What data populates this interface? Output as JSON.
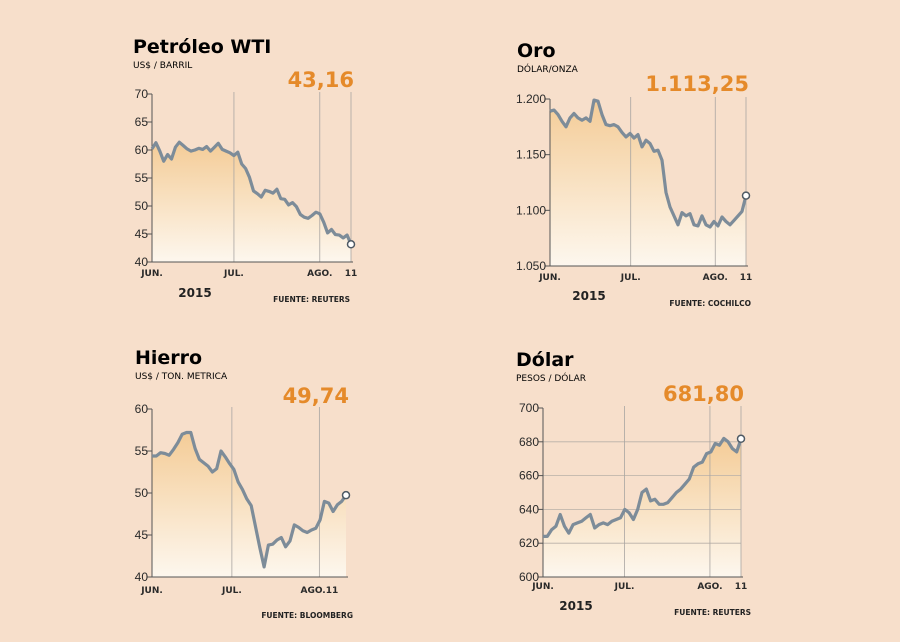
{
  "colors": {
    "background": "#f7dfcb",
    "line": "#7d8c99",
    "highlight": "#e58a2a",
    "fill_top": "#f4cc97",
    "fill_bottom": "#fdf7ee"
  },
  "chart_data": [
    {
      "type": "line",
      "title": "Petróleo WTI",
      "subtitle": "US$ / BARRIL",
      "last_value_label": "43,16",
      "year_label": "2015",
      "source": "FUENTE: REUTERS",
      "ylim": [
        40,
        70
      ],
      "y_ticks": [
        "70",
        "65",
        "60",
        "55",
        "50",
        "45",
        "40"
      ],
      "x_ticks": [
        "JUN.",
        "JUL.",
        "AGO.",
        "11"
      ],
      "x_tick_positions": [
        0,
        21,
        43,
        51
      ],
      "grid": "vertical",
      "values": [
        60.2,
        61.3,
        59.8,
        58.0,
        59.2,
        58.4,
        60.5,
        61.4,
        60.8,
        60.2,
        59.8,
        60.0,
        60.3,
        60.1,
        60.6,
        59.8,
        60.5,
        61.2,
        60.1,
        59.8,
        59.5,
        59.0,
        59.6,
        57.5,
        56.7,
        55.1,
        52.7,
        52.2,
        51.6,
        52.8,
        52.6,
        52.3,
        53.0,
        51.3,
        51.2,
        50.2,
        50.6,
        49.9,
        48.5,
        48.0,
        47.8,
        48.3,
        48.9,
        48.6,
        47.1,
        45.2,
        45.8,
        44.9,
        44.8,
        44.3,
        44.8,
        43.16
      ]
    },
    {
      "type": "line",
      "title": "Oro",
      "subtitle": "DÓLAR/ONZA",
      "last_value_label": "1.113,25",
      "year_label": "2015",
      "source": "FUENTE: COCHILCO",
      "ylim": [
        1050,
        1200
      ],
      "y_ticks": [
        "1.200",
        "1.150",
        "1.100",
        "1.050"
      ],
      "x_ticks": [
        "JUN.",
        "JUL.",
        "AGO.",
        "11"
      ],
      "x_tick_positions": [
        0,
        21,
        43,
        51
      ],
      "grid": "vertical",
      "values": [
        1189,
        1190,
        1186,
        1180,
        1175,
        1183,
        1187,
        1183,
        1181,
        1183,
        1180,
        1199,
        1198,
        1186,
        1177,
        1176,
        1177,
        1175,
        1170,
        1166,
        1169,
        1165,
        1168,
        1157,
        1163,
        1160,
        1153,
        1154,
        1145,
        1116,
        1103,
        1095,
        1087,
        1098,
        1095,
        1097,
        1087,
        1086,
        1095,
        1087,
        1085,
        1090,
        1086,
        1094,
        1090,
        1087,
        1091,
        1095,
        1099,
        1113.25
      ]
    },
    {
      "type": "line",
      "title": "Hierro",
      "subtitle": "US$ / TON. METRICA",
      "last_value_label": "49,74",
      "year_label": "",
      "source": "FUENTE: BLOOMBERG",
      "ylim": [
        40,
        60
      ],
      "y_ticks": [
        "60",
        "55",
        "50",
        "45",
        "40"
      ],
      "x_ticks": [
        "JUN.",
        "JUL.",
        "AGO.11"
      ],
      "x_tick_positions": [
        0,
        21,
        44
      ],
      "grid": "vertical",
      "values": [
        54.4,
        54.4,
        54.8,
        54.7,
        54.5,
        55.2,
        56.0,
        57.0,
        57.2,
        57.2,
        55.3,
        54.0,
        53.6,
        53.2,
        52.5,
        52.9,
        55.0,
        54.3,
        53.5,
        52.8,
        51.3,
        50.4,
        49.3,
        48.5,
        46.0,
        43.5,
        41.2,
        43.8,
        43.9,
        44.4,
        44.7,
        43.6,
        44.3,
        46.2,
        45.9,
        45.5,
        45.3,
        45.6,
        45.8,
        46.8,
        49.0,
        48.8,
        47.8,
        48.6,
        49.0,
        49.74
      ]
    },
    {
      "type": "line",
      "title": "Dólar",
      "subtitle": "PESOS / DÓLAR",
      "last_value_label": "681,80",
      "year_label": "2015",
      "source": "FUENTE: REUTERS",
      "ylim": [
        600,
        700
      ],
      "y_ticks": [
        "700",
        "680",
        "660",
        "640",
        "620",
        "600"
      ],
      "x_ticks": [
        "JUN.",
        "JUL.",
        "AGO.",
        "11"
      ],
      "x_tick_positions": [
        0,
        21,
        43,
        51
      ],
      "grid": "both",
      "values": [
        624,
        624,
        628,
        630,
        637,
        630,
        626,
        631,
        632,
        633,
        635,
        637,
        629,
        631,
        632,
        631,
        633,
        634,
        635,
        640,
        638,
        634,
        640,
        650,
        652,
        645,
        646,
        643,
        643,
        644,
        647,
        650,
        652,
        655,
        658,
        665,
        667,
        668,
        673,
        674,
        679,
        678,
        682,
        680,
        676,
        674,
        681.8
      ]
    }
  ]
}
